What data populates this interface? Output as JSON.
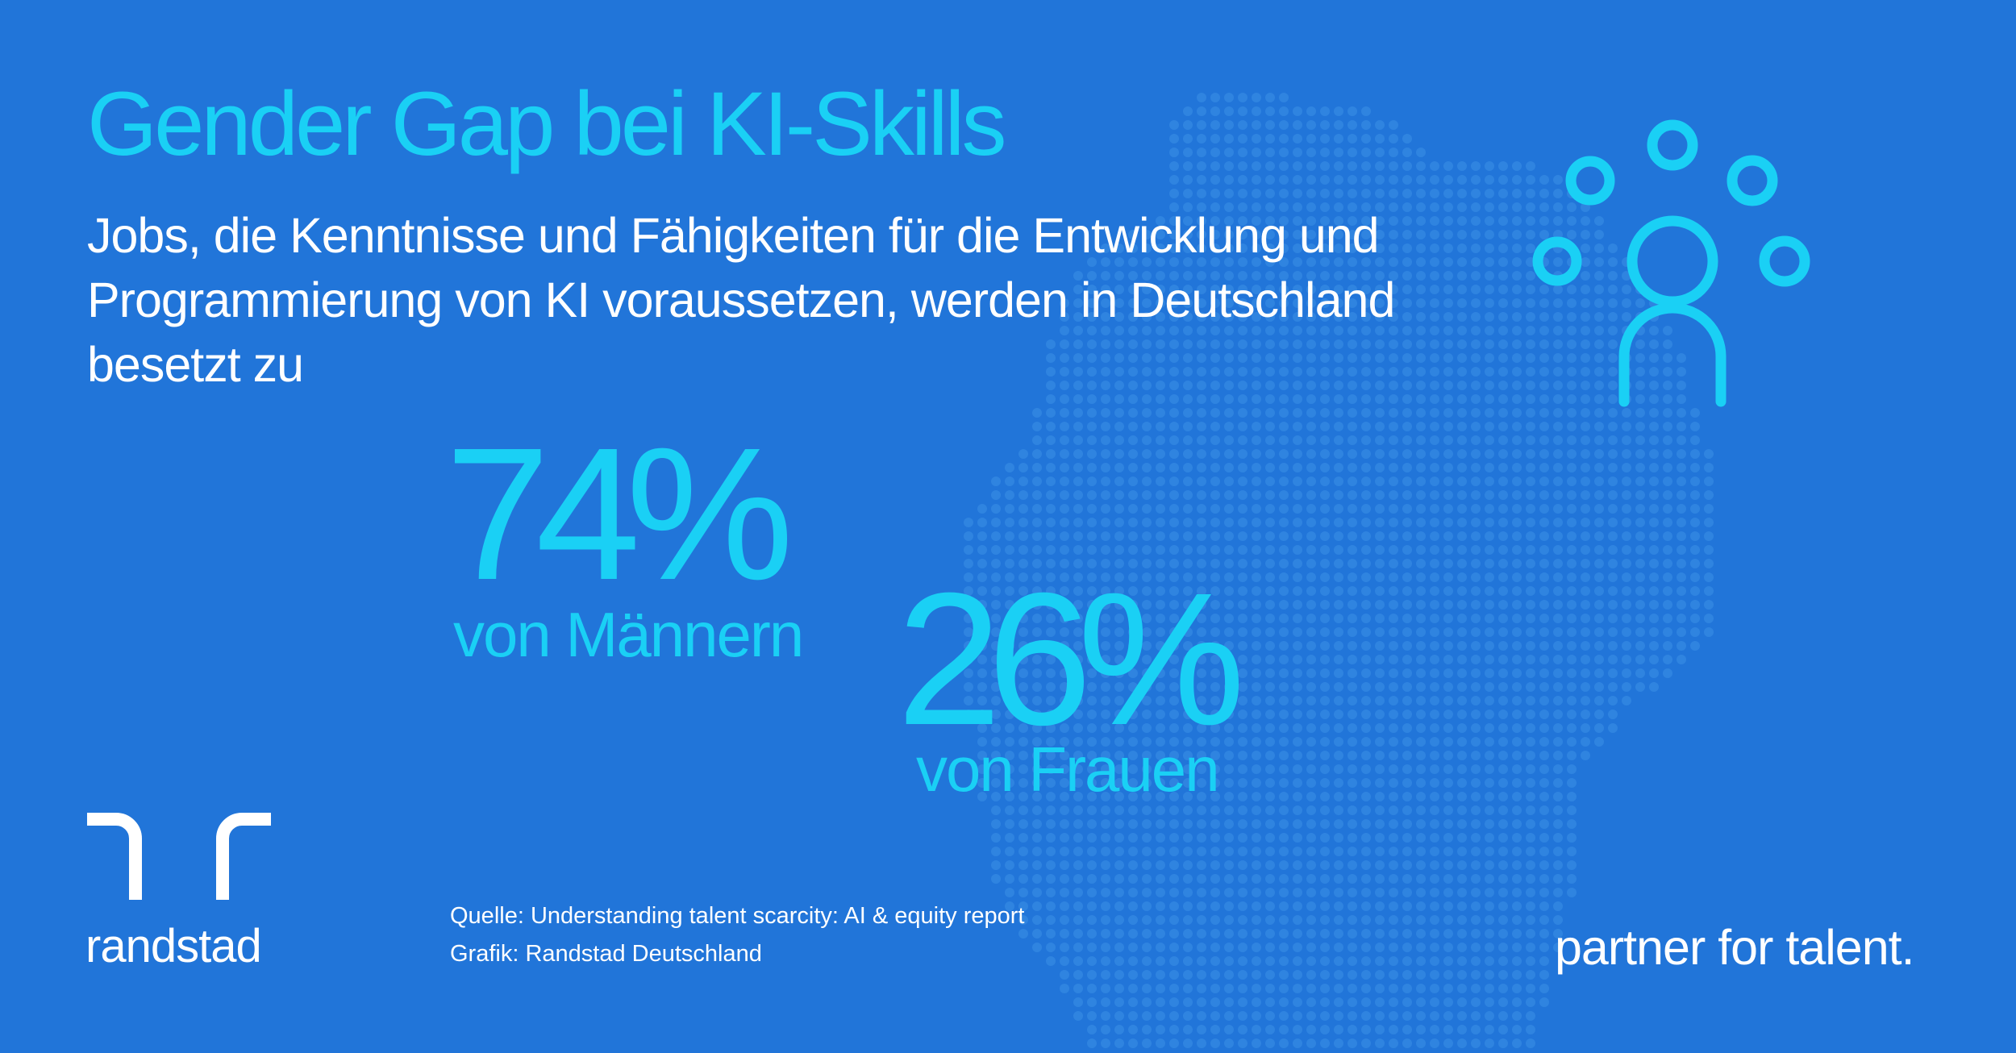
{
  "title": "Gender Gap bei KI-Skills",
  "subtitle": "Jobs, die Kenntnisse und Fähigkeiten für die Entwicklung und Programmierung von KI voraussetzen, werden in Deutschland besetzt zu",
  "stats": [
    {
      "value": "74%",
      "label": "von Männern"
    },
    {
      "value": "26%",
      "label": "von Frauen"
    }
  ],
  "source": {
    "quelle": "Quelle: Understanding talent scarcity: AI & equity report",
    "grafik": "Grafik: Randstad Deutschland"
  },
  "brand": {
    "name": "randstad",
    "tagline": "partner for talent."
  },
  "colors": {
    "background": "#2175d9",
    "accent": "#1ad0f5",
    "text": "#ffffff",
    "map_dots": "#3d8fe6"
  },
  "icons": [
    "people-network-icon",
    "randstad-logo-icon",
    "germany-dot-map"
  ]
}
